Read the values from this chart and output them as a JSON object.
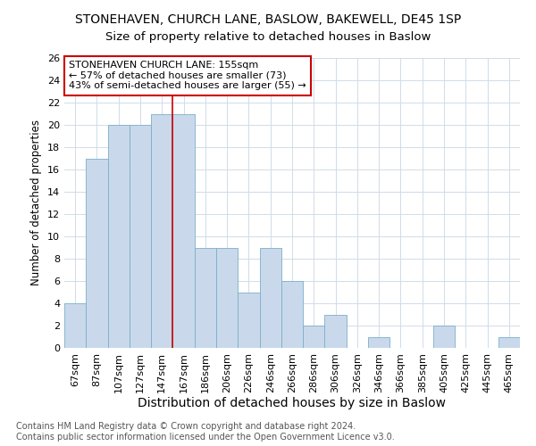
{
  "title": "STONEHAVEN, CHURCH LANE, BASLOW, BAKEWELL, DE45 1SP",
  "subtitle": "Size of property relative to detached houses in Baslow",
  "xlabel": "Distribution of detached houses by size in Baslow",
  "ylabel": "Number of detached properties",
  "footer_line1": "Contains HM Land Registry data © Crown copyright and database right 2024.",
  "footer_line2": "Contains public sector information licensed under the Open Government Licence v3.0.",
  "bar_labels": [
    "67sqm",
    "87sqm",
    "107sqm",
    "127sqm",
    "147sqm",
    "167sqm",
    "186sqm",
    "206sqm",
    "226sqm",
    "246sqm",
    "266sqm",
    "286sqm",
    "306sqm",
    "326sqm",
    "346sqm",
    "366sqm",
    "385sqm",
    "405sqm",
    "425sqm",
    "445sqm",
    "465sqm"
  ],
  "bar_values": [
    4,
    17,
    20,
    20,
    21,
    21,
    9,
    9,
    5,
    9,
    6,
    2,
    3,
    0,
    1,
    0,
    0,
    2,
    0,
    0,
    1
  ],
  "bar_color": "#c9d9eb",
  "bar_edge_color": "#7aafc8",
  "vline_x": 4.5,
  "vline_color": "#cc0000",
  "annotation_line1": "STONEHAVEN CHURCH LANE: 155sqm",
  "annotation_line2": "← 57% of detached houses are smaller (73)",
  "annotation_line3": "43% of semi-detached houses are larger (55) →",
  "annotation_box_edge": "#cc0000",
  "ylim": [
    0,
    26
  ],
  "yticks": [
    0,
    2,
    4,
    6,
    8,
    10,
    12,
    14,
    16,
    18,
    20,
    22,
    24,
    26
  ],
  "title_fontsize": 10,
  "subtitle_fontsize": 9.5,
  "xlabel_fontsize": 10,
  "ylabel_fontsize": 8.5,
  "tick_fontsize": 8,
  "annotation_fontsize": 8,
  "footer_fontsize": 7,
  "background_color": "#ffffff",
  "grid_color": "#d0dce8"
}
